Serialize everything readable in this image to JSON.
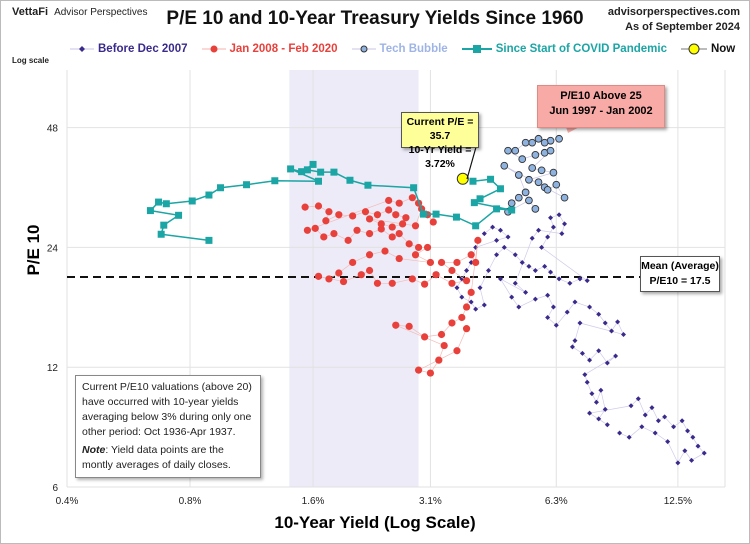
{
  "header": {
    "logo_brand": "VettaFi",
    "logo_sub": "Advisor Perspectives",
    "title": "P/E 10 and 10-Year Treasury Yields Since 1960",
    "website": "advisorperspectives.com",
    "as_of": "As of September 2024"
  },
  "colors": {
    "before_2007": "#3b2a8c",
    "post_2008": "#e8413c",
    "tech_bubble": "#8fb3e0",
    "covid": "#1ba5a5",
    "now": "#ffff00",
    "shade": "#ecebf7"
  },
  "annotations": {
    "log_scale": "Log scale",
    "current_line1": "Current P/E = 35.7",
    "current_line2": "10-Yr Yield = 3.72%",
    "bubble_line1": "P/E10 Above 25",
    "bubble_line2": "Jun 1997 - Jan 2002",
    "mean_line1": "Mean (Average)",
    "mean_line2": "P/E10 = 17.5",
    "note_text": "Current P/E10 valuations (above 20) have occurred with 10-year yields averaging below 3% during only one other period: Oct 1936-Apr 1937.",
    "note_label": "Note",
    "note_rest": ": Yield data points are the montly averages of daily closes."
  },
  "chart_data": {
    "type": "scatter",
    "title": "P/E 10 and 10-Year Treasury Yields Since 1960",
    "xlabel": "10-Year Yield (Log Scale)",
    "ylabel": "P/E 10",
    "x_scale": "log",
    "y_scale": "log",
    "xlim": [
      0.4,
      16.3
    ],
    "ylim": [
      6,
      67
    ],
    "x_ticks": [
      0.4,
      0.8,
      1.6,
      3.1,
      6.3,
      12.5
    ],
    "x_tick_labels": [
      "0.4%",
      "0.8%",
      "1.6%",
      "3.1%",
      "6.3%",
      "12.5%"
    ],
    "y_ticks": [
      6,
      12,
      24,
      48
    ],
    "y_tick_labels": [
      "6",
      "12",
      "24",
      "48"
    ],
    "grid": true,
    "legend_position": "top",
    "shaded_x_range": [
      1.4,
      2.9
    ],
    "mean_pe": 17.5,
    "series": [
      {
        "name": "Before Dec 2007",
        "marker": "diamond",
        "color": "#3b2a8c",
        "points": [
          [
            4.2,
            26
          ],
          [
            4.4,
            27
          ],
          [
            4.6,
            26.5
          ],
          [
            4.8,
            25.5
          ],
          [
            4.5,
            25
          ],
          [
            4.0,
            24
          ],
          [
            3.9,
            22
          ],
          [
            3.8,
            21
          ],
          [
            3.7,
            20
          ],
          [
            3.6,
            19
          ],
          [
            3.7,
            18
          ],
          [
            3.9,
            17.5
          ],
          [
            4.0,
            16.8
          ],
          [
            4.2,
            17.2
          ],
          [
            4.1,
            19
          ],
          [
            4.3,
            21
          ],
          [
            4.5,
            23
          ],
          [
            4.7,
            24
          ],
          [
            5.0,
            23
          ],
          [
            5.2,
            22
          ],
          [
            5.4,
            21.5
          ],
          [
            5.6,
            21
          ],
          [
            5.9,
            21.5
          ],
          [
            6.1,
            20.8
          ],
          [
            6.4,
            20
          ],
          [
            6.8,
            19.5
          ],
          [
            7.2,
            20
          ],
          [
            7.5,
            19.8
          ],
          [
            5.8,
            24
          ],
          [
            6.0,
            25.5
          ],
          [
            6.2,
            27
          ],
          [
            6.1,
            28.5
          ],
          [
            6.4,
            29
          ],
          [
            6.6,
            27.5
          ],
          [
            6.5,
            26
          ],
          [
            5.7,
            26.5
          ],
          [
            5.5,
            25.3
          ],
          [
            5.0,
            19.5
          ],
          [
            5.3,
            18.5
          ],
          [
            4.6,
            20
          ],
          [
            4.9,
            18
          ],
          [
            5.1,
            17
          ],
          [
            5.6,
            17.8
          ],
          [
            6.0,
            18.2
          ],
          [
            6.2,
            17
          ],
          [
            6.0,
            16
          ],
          [
            6.3,
            15.3
          ],
          [
            6.7,
            16.5
          ],
          [
            7.0,
            17.5
          ],
          [
            7.6,
            17
          ],
          [
            8.0,
            16.3
          ],
          [
            8.3,
            15.5
          ],
          [
            8.6,
            14.8
          ],
          [
            8.9,
            15.6
          ],
          [
            9.2,
            14.5
          ],
          [
            7.2,
            15.5
          ],
          [
            7.0,
            14
          ],
          [
            6.9,
            13.5
          ],
          [
            7.3,
            13
          ],
          [
            7.6,
            12.5
          ],
          [
            8.0,
            13.2
          ],
          [
            8.4,
            12.3
          ],
          [
            8.8,
            12.8
          ],
          [
            7.4,
            11.5
          ],
          [
            7.5,
            11
          ],
          [
            7.7,
            10.3
          ],
          [
            7.9,
            9.8
          ],
          [
            8.1,
            10.5
          ],
          [
            8.3,
            9.4
          ],
          [
            8.0,
            8.9
          ],
          [
            8.4,
            8.6
          ],
          [
            7.6,
            9.2
          ],
          [
            9.6,
            9.6
          ],
          [
            10.0,
            10
          ],
          [
            10.4,
            9.1
          ],
          [
            10.8,
            9.5
          ],
          [
            11.2,
            8.8
          ],
          [
            11.6,
            9.0
          ],
          [
            12.2,
            8.5
          ],
          [
            12.8,
            8.8
          ],
          [
            13.2,
            8.3
          ],
          [
            13.6,
            8.0
          ],
          [
            14.0,
            7.6
          ],
          [
            14.5,
            7.3
          ],
          [
            13.5,
            7.0
          ],
          [
            13.0,
            7.4
          ],
          [
            12.5,
            6.9
          ],
          [
            11.8,
            7.8
          ],
          [
            11.0,
            8.2
          ],
          [
            10.2,
            8.5
          ],
          [
            9.5,
            8.0
          ],
          [
            9.0,
            8.2
          ]
        ]
      },
      {
        "name": "Jan 2008 - Feb 2020",
        "marker": "circle",
        "color": "#e8413c",
        "points": [
          [
            1.53,
            30.3
          ],
          [
            1.65,
            30.5
          ],
          [
            1.75,
            29.5
          ],
          [
            1.72,
            28
          ],
          [
            1.85,
            29
          ],
          [
            2.0,
            28.8
          ],
          [
            2.15,
            29.5
          ],
          [
            2.3,
            29
          ],
          [
            2.45,
            29.8
          ],
          [
            2.55,
            29
          ],
          [
            2.7,
            28.5
          ],
          [
            2.65,
            27.5
          ],
          [
            2.5,
            27
          ],
          [
            2.35,
            27.5
          ],
          [
            2.2,
            28.3
          ],
          [
            2.85,
            27.2
          ],
          [
            2.95,
            30
          ],
          [
            3.05,
            29
          ],
          [
            3.15,
            27.8
          ],
          [
            2.9,
            31
          ],
          [
            2.8,
            32
          ],
          [
            2.6,
            31
          ],
          [
            2.45,
            31.5
          ],
          [
            1.55,
            26.5
          ],
          [
            1.62,
            26.8
          ],
          [
            1.7,
            25.5
          ],
          [
            1.8,
            26
          ],
          [
            1.95,
            25
          ],
          [
            2.05,
            26.5
          ],
          [
            2.2,
            26
          ],
          [
            2.35,
            26.7
          ],
          [
            2.5,
            25.5
          ],
          [
            2.6,
            26
          ],
          [
            2.75,
            24.5
          ],
          [
            2.9,
            24
          ],
          [
            3.05,
            24
          ],
          [
            2.85,
            23
          ],
          [
            3.1,
            22
          ],
          [
            2.6,
            22.5
          ],
          [
            2.4,
            23.5
          ],
          [
            2.2,
            23
          ],
          [
            2.0,
            22
          ],
          [
            1.85,
            20.7
          ],
          [
            1.75,
            20
          ],
          [
            1.65,
            20.3
          ],
          [
            1.9,
            19.7
          ],
          [
            2.1,
            20.5
          ],
          [
            2.2,
            21
          ],
          [
            2.3,
            19.5
          ],
          [
            2.5,
            19.5
          ],
          [
            2.8,
            20
          ],
          [
            3.0,
            19.4
          ],
          [
            3.2,
            20.5
          ],
          [
            3.5,
            19.5
          ],
          [
            3.8,
            19.8
          ],
          [
            3.5,
            21
          ],
          [
            3.3,
            22
          ],
          [
            3.6,
            22
          ],
          [
            3.9,
            23
          ],
          [
            4.0,
            22
          ],
          [
            4.05,
            25
          ],
          [
            3.9,
            18.5
          ],
          [
            3.8,
            17
          ],
          [
            3.7,
            16
          ],
          [
            3.5,
            15.5
          ],
          [
            3.3,
            14.5
          ],
          [
            3.0,
            14.3
          ],
          [
            2.75,
            15.2
          ],
          [
            2.55,
            15.3
          ],
          [
            3.35,
            13.6
          ],
          [
            3.25,
            12.5
          ],
          [
            3.1,
            11.6
          ],
          [
            2.9,
            11.8
          ],
          [
            3.6,
            13.2
          ],
          [
            3.8,
            15
          ]
        ]
      },
      {
        "name": "Tech Bubble",
        "marker": "ring",
        "color": "#8fb3e0",
        "points": [
          [
            6.4,
            45
          ],
          [
            6.1,
            44.5
          ],
          [
            5.9,
            44
          ],
          [
            5.7,
            45
          ],
          [
            5.5,
            44
          ],
          [
            5.3,
            44
          ],
          [
            5.0,
            42
          ],
          [
            4.8,
            42
          ],
          [
            5.2,
            40
          ],
          [
            5.6,
            41
          ],
          [
            5.9,
            41.5
          ],
          [
            6.1,
            42
          ],
          [
            5.5,
            38
          ],
          [
            5.8,
            37.5
          ],
          [
            6.2,
            37
          ],
          [
            5.4,
            35.5
          ],
          [
            5.7,
            35
          ],
          [
            5.9,
            34
          ],
          [
            6.0,
            33.5
          ],
          [
            6.3,
            34.5
          ],
          [
            6.6,
            32
          ],
          [
            4.7,
            38.5
          ],
          [
            5.1,
            36.5
          ],
          [
            5.3,
            33
          ],
          [
            5.1,
            32
          ],
          [
            4.9,
            31
          ],
          [
            4.8,
            29.5
          ],
          [
            5.4,
            31.5
          ],
          [
            5.6,
            30
          ]
        ]
      },
      {
        "name": "Since Start of COVID Pandemic",
        "marker": "square",
        "color": "#1ba5a5",
        "points": [
          [
            0.89,
            25
          ],
          [
            0.68,
            25.9
          ],
          [
            0.69,
            27.3
          ],
          [
            0.75,
            28.9
          ],
          [
            0.64,
            29.7
          ],
          [
            0.67,
            31.2
          ],
          [
            0.7,
            30.9
          ],
          [
            0.81,
            31.4
          ],
          [
            0.89,
            32.5
          ],
          [
            0.95,
            33.9
          ],
          [
            1.1,
            34.5
          ],
          [
            1.29,
            35.3
          ],
          [
            1.65,
            35.2
          ],
          [
            1.41,
            37.8
          ],
          [
            1.5,
            37.2
          ],
          [
            1.6,
            38.8
          ],
          [
            1.55,
            37.6
          ],
          [
            1.67,
            37.1
          ],
          [
            1.8,
            37.1
          ],
          [
            1.97,
            35.4
          ],
          [
            2.18,
            34.4
          ],
          [
            2.82,
            33.9
          ],
          [
            2.98,
            29.1
          ],
          [
            3.2,
            29.1
          ],
          [
            3.59,
            28.6
          ],
          [
            4.0,
            27.2
          ],
          [
            4.5,
            30
          ],
          [
            4.9,
            29.8
          ],
          [
            3.97,
            31.1
          ],
          [
            4.1,
            31.8
          ],
          [
            4.6,
            33.7
          ],
          [
            4.35,
            35.6
          ],
          [
            3.94,
            35.2
          ]
        ]
      },
      {
        "name": "Now",
        "marker": "circle-large",
        "color": "#ffff00",
        "points": [
          [
            3.72,
            35.7
          ]
        ]
      }
    ]
  }
}
